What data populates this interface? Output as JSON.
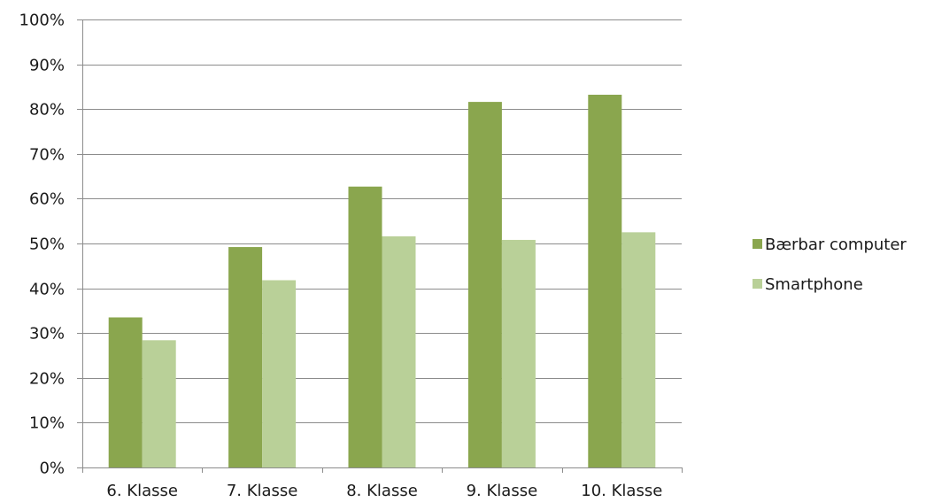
{
  "chart_data": {
    "type": "bar",
    "categories": [
      "6. Klasse",
      "7. Klasse",
      "8. Klasse",
      "9. Klasse",
      "10. Klasse"
    ],
    "series": [
      {
        "name": "Bærbar computer",
        "color": "#8aa64e",
        "values": [
          33.5,
          49.2,
          62.7,
          81.6,
          83.2
        ]
      },
      {
        "name": "Smartphone",
        "color": "#b9d098",
        "values": [
          28.4,
          41.8,
          51.6,
          50.8,
          52.5
        ]
      }
    ],
    "ylim": [
      0,
      100
    ],
    "yticks": [
      "0%",
      "10%",
      "20%",
      "30%",
      "40%",
      "50%",
      "60%",
      "70%",
      "80%",
      "90%",
      "100%"
    ],
    "grid": true,
    "legend_position": "right"
  }
}
